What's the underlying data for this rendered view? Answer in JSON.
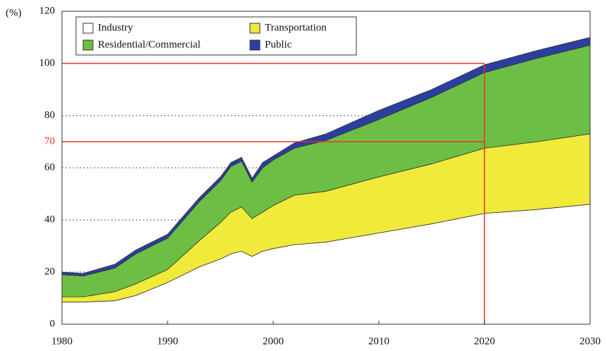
{
  "chart_data": {
    "type": "stacked_area",
    "y_unit": "(%)",
    "x": [
      1980,
      1982,
      1985,
      1987,
      1990,
      1993,
      1995,
      1996,
      1997,
      1998,
      1999,
      2000,
      2002,
      2005,
      2010,
      2015,
      2020,
      2025,
      2030
    ],
    "series": [
      {
        "name": "Industry",
        "color": "#ffffff",
        "values": [
          8.5,
          8.5,
          9,
          11,
          16,
          22,
          25,
          27,
          28,
          26,
          28,
          29,
          30.5,
          31.5,
          35,
          38.5,
          42.5,
          44,
          46
        ]
      },
      {
        "name": "Transportation",
        "color": "#f0ea3a",
        "values": [
          2,
          2,
          3.5,
          4.5,
          5,
          10,
          14,
          16,
          17,
          14.5,
          15,
          16.5,
          19,
          19.5,
          21.5,
          23,
          25,
          26,
          27
        ]
      },
      {
        "name": "Residential/Commercial",
        "color": "#6dbe45",
        "values": [
          8.5,
          8,
          9,
          11.5,
          12,
          15,
          16,
          17.5,
          17.5,
          14,
          17,
          17.5,
          18,
          19.5,
          22,
          25.5,
          29,
          32,
          34
        ]
      },
      {
        "name": "Public",
        "color": "#2a3f9f",
        "values": [
          1,
          1,
          1.5,
          1.5,
          1.5,
          1.5,
          1.5,
          1.5,
          1.5,
          1.5,
          2,
          1.5,
          2,
          2.5,
          3.5,
          3,
          3,
          3,
          3
        ]
      }
    ],
    "xlim": [
      1980,
      2030
    ],
    "xticks": [
      1980,
      1990,
      2000,
      2010,
      2020,
      2030
    ],
    "ylim": [
      0,
      120
    ],
    "yticks": [
      0,
      20,
      40,
      60,
      70,
      80,
      100,
      120
    ],
    "grid": "dotted",
    "y_reference_lines": [
      100,
      70
    ],
    "x_reference_lines": [
      2020
    ],
    "reference_color": "#e8302a",
    "red_yticks": [
      70
    ],
    "legend": "top-left"
  }
}
